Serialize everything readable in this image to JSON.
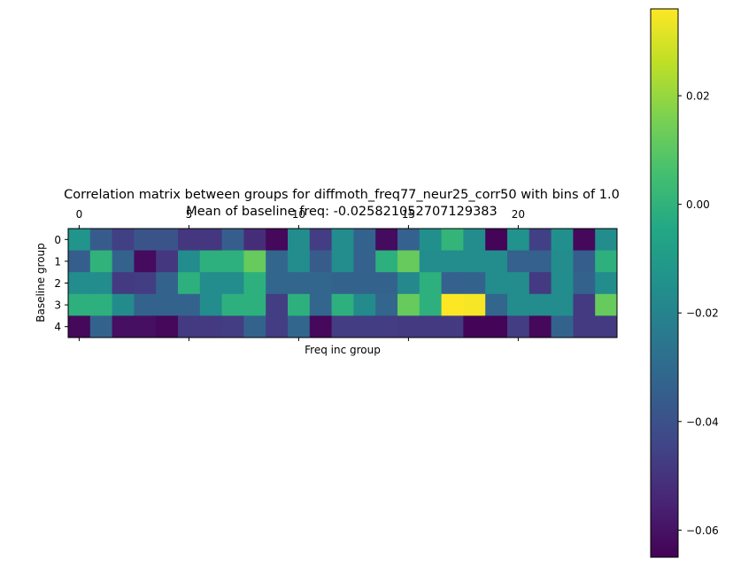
{
  "chart_data": {
    "type": "heatmap",
    "title_line1": "Correlation matrix between groups for diffmoth_freq77_neur25_corr50 with bins of 1.0",
    "title_line2": "Mean of baseline freq: -0.025821052707129383",
    "xlabel": "Freq inc group",
    "ylabel": "Baseline group",
    "x_tick_labels": [
      "0",
      "5",
      "10",
      "15",
      "20"
    ],
    "x_tick_positions": [
      0,
      5,
      10,
      15,
      20
    ],
    "y_tick_labels": [
      "0",
      "1",
      "2",
      "3",
      "4"
    ],
    "n_rows": 5,
    "n_cols": 25,
    "colormap": "viridis",
    "vmin": -0.065,
    "vmax": 0.036,
    "colorbar_ticks": [
      0.02,
      0.0,
      -0.02,
      -0.04,
      -0.06
    ],
    "colorbar_tick_labels": [
      "0.02",
      "0.00",
      "−0.02",
      "−0.04",
      "−0.06"
    ],
    "values": [
      [
        -0.013,
        -0.036,
        -0.046,
        -0.039,
        -0.039,
        -0.049,
        -0.049,
        -0.035,
        -0.052,
        -0.063,
        -0.016,
        -0.047,
        -0.016,
        -0.033,
        -0.062,
        -0.034,
        -0.015,
        0.001,
        -0.016,
        -0.064,
        -0.014,
        -0.046,
        -0.015,
        -0.063,
        -0.016
      ],
      [
        -0.035,
        0.0,
        -0.033,
        -0.062,
        -0.049,
        -0.016,
        -0.001,
        -0.001,
        0.012,
        -0.032,
        -0.016,
        -0.036,
        -0.016,
        -0.034,
        -0.001,
        0.012,
        -0.016,
        -0.016,
        -0.016,
        -0.016,
        -0.034,
        -0.034,
        -0.016,
        -0.035,
        -0.001
      ],
      [
        -0.016,
        -0.016,
        -0.048,
        -0.047,
        -0.033,
        -0.001,
        -0.016,
        -0.016,
        -0.001,
        -0.032,
        -0.032,
        -0.032,
        -0.033,
        -0.033,
        -0.033,
        -0.018,
        -0.001,
        -0.034,
        -0.033,
        -0.016,
        -0.016,
        -0.048,
        -0.016,
        -0.033,
        -0.016
      ],
      [
        -0.001,
        -0.001,
        -0.017,
        -0.033,
        -0.033,
        -0.033,
        -0.016,
        -0.001,
        -0.001,
        -0.047,
        -0.001,
        -0.032,
        -0.001,
        -0.017,
        -0.032,
        0.012,
        -0.001,
        0.036,
        0.035,
        -0.032,
        -0.016,
        -0.016,
        -0.016,
        -0.048,
        0.012
      ],
      [
        -0.063,
        -0.033,
        -0.061,
        -0.061,
        -0.063,
        -0.048,
        -0.048,
        -0.047,
        -0.033,
        -0.047,
        -0.032,
        -0.063,
        -0.047,
        -0.047,
        -0.047,
        -0.048,
        -0.048,
        -0.048,
        -0.064,
        -0.064,
        -0.047,
        -0.063,
        -0.033,
        -0.048,
        -0.048
      ]
    ]
  }
}
